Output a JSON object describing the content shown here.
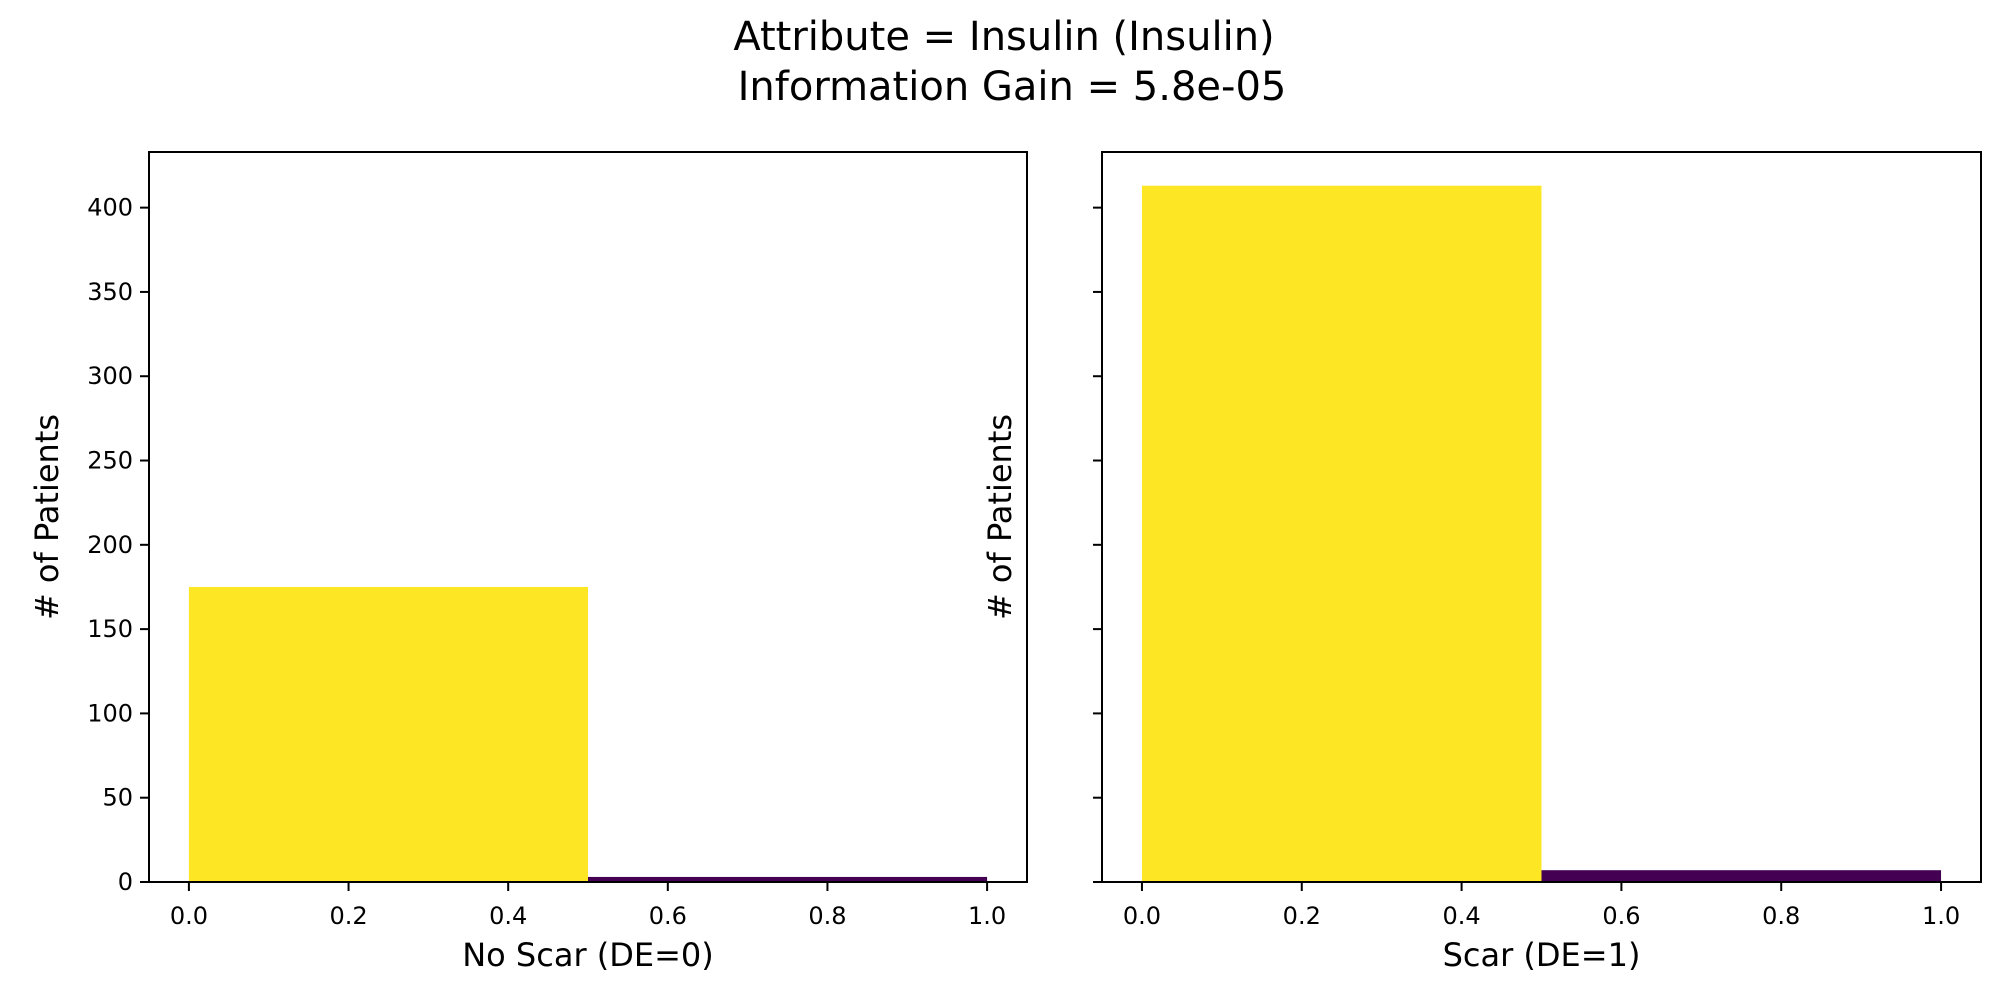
{
  "title": {
    "line1": "Attribute = Insulin (Insulin)",
    "line2": "Information Gain = 5.8e-05"
  },
  "colors": {
    "yellow": "#fde725",
    "purple": "#440154",
    "axis": "#000000",
    "background": "#ffffff"
  },
  "chart_data": [
    {
      "type": "bar",
      "title": "",
      "xlabel": "No Scar (DE=0)",
      "ylabel": "# of Patients",
      "xlim": [
        -0.05,
        1.05
      ],
      "ylim": [
        0,
        433
      ],
      "xticks": [
        "0.0",
        "0.2",
        "0.4",
        "0.6",
        "0.8",
        "1.0"
      ],
      "yticks": [
        "0",
        "50",
        "100",
        "150",
        "200",
        "250",
        "300",
        "350",
        "400"
      ],
      "show_y_tick_labels": true,
      "grid": false,
      "bars": [
        {
          "x0": 0.0,
          "x1": 0.5,
          "value": 175,
          "color": "#fde725"
        },
        {
          "x0": 0.5,
          "x1": 1.0,
          "value": 3,
          "color": "#440154"
        }
      ]
    },
    {
      "type": "bar",
      "title": "",
      "xlabel": "Scar (DE=1)",
      "ylabel": "# of Patients",
      "xlim": [
        -0.05,
        1.05
      ],
      "ylim": [
        0,
        433
      ],
      "xticks": [
        "0.0",
        "0.2",
        "0.4",
        "0.6",
        "0.8",
        "1.0"
      ],
      "yticks": [
        "0",
        "50",
        "100",
        "150",
        "200",
        "250",
        "300",
        "350",
        "400"
      ],
      "show_y_tick_labels": false,
      "grid": false,
      "bars": [
        {
          "x0": 0.0,
          "x1": 0.5,
          "value": 413,
          "color": "#fde725"
        },
        {
          "x0": 0.5,
          "x1": 1.0,
          "value": 7,
          "color": "#440154"
        }
      ]
    }
  ]
}
